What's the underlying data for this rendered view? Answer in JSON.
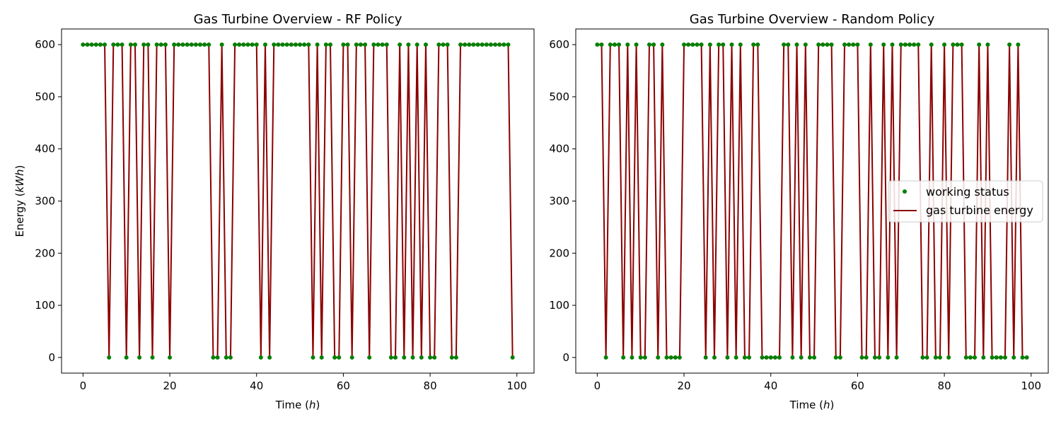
{
  "colors": {
    "line": "#8b0000",
    "marker": "#008000",
    "axis": "#000000"
  },
  "chart_data": [
    {
      "type": "line",
      "title": "Gas Turbine Overview - RF Policy",
      "xlabel": {
        "text": "Time (",
        "italic": "h",
        "suffix": ")"
      },
      "ylabel": {
        "text": "Energy (",
        "italic": "kWh",
        "suffix": ")"
      },
      "xlim": [
        -4.95,
        103.95
      ],
      "ylim": [
        -30,
        630
      ],
      "xticks": [
        0,
        20,
        40,
        60,
        80,
        100
      ],
      "yticks": [
        0,
        100,
        200,
        300,
        400,
        500,
        600
      ],
      "x_start": 0,
      "series": [
        {
          "name": "working status",
          "kind": "scatter"
        },
        {
          "name": "gas turbine energy",
          "kind": "line"
        }
      ],
      "status": [
        1,
        1,
        1,
        1,
        1,
        1,
        0,
        1,
        1,
        1,
        0,
        1,
        1,
        0,
        1,
        1,
        0,
        1,
        1,
        1,
        0,
        1,
        1,
        1,
        1,
        1,
        1,
        1,
        1,
        1,
        0,
        0,
        1,
        0,
        0,
        1,
        1,
        1,
        1,
        1,
        1,
        0,
        1,
        0,
        1,
        1,
        1,
        1,
        1,
        1,
        1,
        1,
        1,
        0,
        1,
        0,
        1,
        1,
        0,
        0,
        1,
        1,
        0,
        1,
        1,
        1,
        0,
        1,
        1,
        1,
        1,
        0,
        0,
        1,
        0,
        1,
        0,
        1,
        0,
        1,
        0,
        0,
        1,
        1,
        1,
        0,
        0,
        1,
        1,
        1,
        1,
        1,
        1,
        1,
        1,
        1,
        1,
        1,
        1,
        0
      ],
      "on_value": 600,
      "legend": null
    },
    {
      "type": "line",
      "title": "Gas Turbine Overview - Random Policy",
      "xlabel": {
        "text": "Time (",
        "italic": "h",
        "suffix": ")"
      },
      "ylabel": null,
      "xlim": [
        -4.95,
        103.95
      ],
      "ylim": [
        -30,
        630
      ],
      "xticks": [
        0,
        20,
        40,
        60,
        80,
        100
      ],
      "yticks": [
        0,
        100,
        200,
        300,
        400,
        500,
        600
      ],
      "x_start": 0,
      "series": [
        {
          "name": "working status",
          "kind": "scatter"
        },
        {
          "name": "gas turbine energy",
          "kind": "line"
        }
      ],
      "status": [
        1,
        1,
        0,
        1,
        1,
        1,
        0,
        1,
        0,
        1,
        0,
        0,
        1,
        1,
        0,
        1,
        0,
        0,
        0,
        0,
        1,
        1,
        1,
        1,
        1,
        0,
        1,
        0,
        1,
        1,
        0,
        1,
        0,
        1,
        0,
        0,
        1,
        1,
        0,
        0,
        0,
        0,
        0,
        1,
        1,
        0,
        1,
        0,
        1,
        0,
        0,
        1,
        1,
        1,
        1,
        0,
        0,
        1,
        1,
        1,
        1,
        0,
        0,
        1,
        0,
        0,
        1,
        0,
        1,
        0,
        1,
        1,
        1,
        1,
        1,
        0,
        0,
        1,
        0,
        0,
        1,
        0,
        1,
        1,
        1,
        0,
        0,
        0,
        1,
        0,
        1,
        0,
        0,
        0,
        0,
        1,
        0,
        1,
        0,
        0
      ],
      "on_value": 600,
      "legend": "center-right"
    }
  ]
}
